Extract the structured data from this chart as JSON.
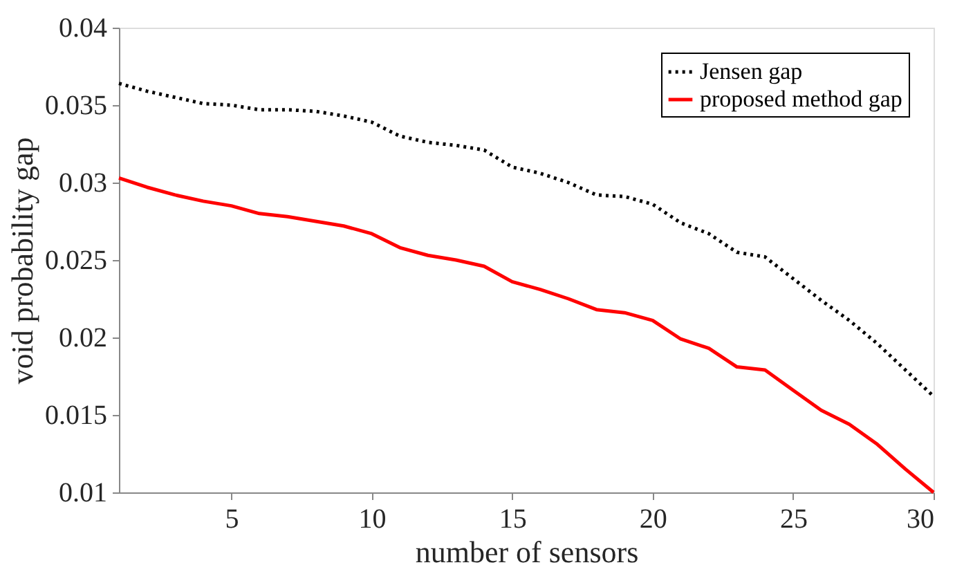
{
  "chart_data": {
    "type": "line",
    "xlabel": "number of sensors",
    "ylabel": "void probability gap",
    "x": [
      1,
      2,
      3,
      4,
      5,
      6,
      7,
      8,
      9,
      10,
      11,
      12,
      13,
      14,
      15,
      16,
      17,
      18,
      19,
      20,
      21,
      22,
      23,
      24,
      25,
      26,
      27,
      28,
      29,
      30
    ],
    "series": [
      {
        "name": "Jensen gap",
        "color": "#000000",
        "line_style": "dotted",
        "values": [
          0.0364,
          0.0359,
          0.0355,
          0.0351,
          0.035,
          0.0347,
          0.0347,
          0.0346,
          0.0343,
          0.0339,
          0.033,
          0.0326,
          0.0324,
          0.0321,
          0.031,
          0.0306,
          0.03,
          0.0292,
          0.0291,
          0.0286,
          0.0274,
          0.0267,
          0.0255,
          0.0252,
          0.0238,
          0.0224,
          0.0211,
          0.0196,
          0.0179,
          0.0162
        ]
      },
      {
        "name": "proposed method gap",
        "color": "#ff0000",
        "line_style": "solid",
        "values": [
          0.0303,
          0.0297,
          0.0292,
          0.0288,
          0.0285,
          0.028,
          0.0278,
          0.0275,
          0.0272,
          0.0267,
          0.0258,
          0.0253,
          0.025,
          0.0246,
          0.0236,
          0.0231,
          0.0225,
          0.0218,
          0.0216,
          0.0211,
          0.0199,
          0.0193,
          0.0181,
          0.0179,
          0.0166,
          0.0153,
          0.0144,
          0.0131,
          0.0115,
          0.01
        ]
      }
    ],
    "xlim": [
      1,
      30
    ],
    "xticks": [
      5,
      10,
      15,
      20,
      25,
      30
    ],
    "ylim": [
      0.01,
      0.04
    ],
    "yticks": [
      0.01,
      0.015,
      0.02,
      0.025,
      0.03,
      0.035,
      0.04
    ],
    "legend": "top right",
    "grid": false,
    "marker": "none"
  }
}
